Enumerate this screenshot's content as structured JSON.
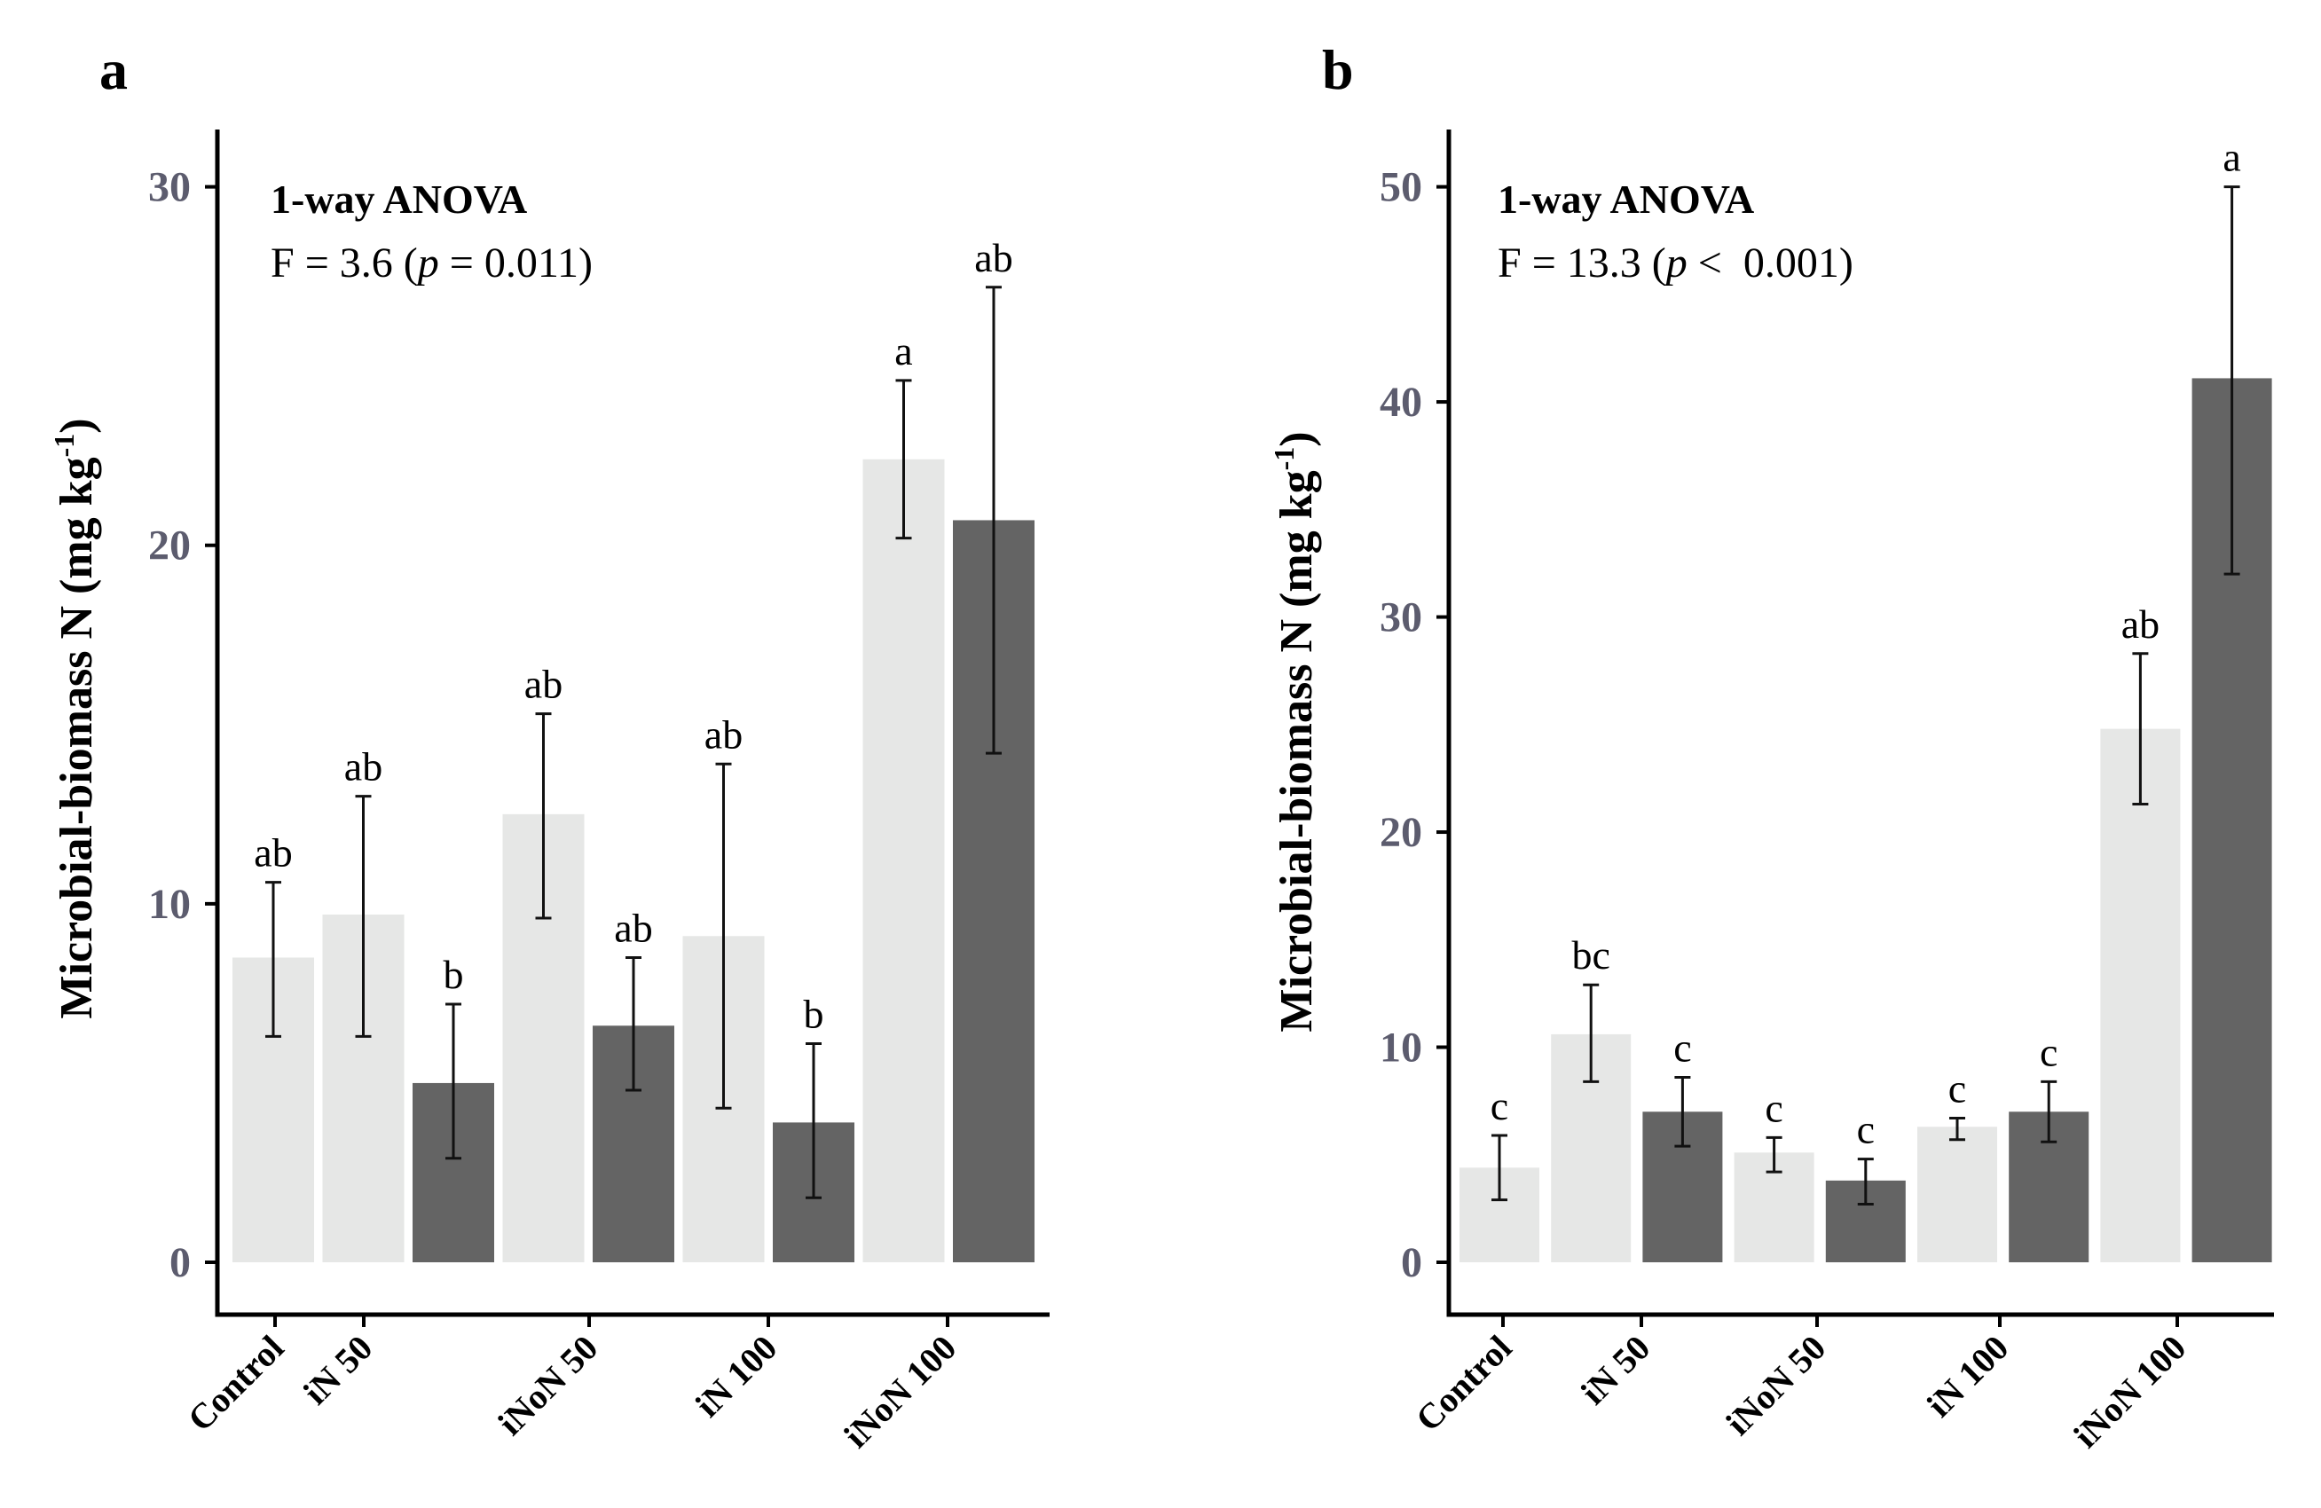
{
  "chart_data": [
    {
      "panel": "a",
      "type": "bar",
      "ylabel_main": "Microbial-biomass N (mg kg",
      "ylabel_sup": "-1",
      "ylabel_close": ")",
      "yticks": [
        0,
        10,
        20,
        30
      ],
      "ylim": [
        0,
        31.5
      ],
      "xticks": [
        "Control",
        "iN 50",
        "iNoN 50",
        "iN 100",
        "iNoN 100"
      ],
      "annotation": {
        "title": "1-way ANOVA",
        "stat_pre": "F = 3.6 (",
        "stat_p": "p",
        "stat_post": " = 0.011)"
      },
      "colors": {
        "light": "#e6e7e6",
        "dark": "#646464"
      },
      "bars": [
        {
          "value": 8.5,
          "err_low": 6.3,
          "err_high": 10.6,
          "letter": "ab",
          "shade": "light"
        },
        {
          "value": 9.7,
          "err_low": 6.3,
          "err_high": 13.0,
          "letter": "ab",
          "shade": "light"
        },
        {
          "value": 5.0,
          "err_low": 2.9,
          "err_high": 7.2,
          "letter": "b",
          "shade": "dark"
        },
        {
          "value": 12.5,
          "err_low": 9.6,
          "err_high": 15.3,
          "letter": "ab",
          "shade": "light"
        },
        {
          "value": 6.6,
          "err_low": 4.8,
          "err_high": 8.5,
          "letter": "ab",
          "shade": "dark"
        },
        {
          "value": 9.1,
          "err_low": 4.3,
          "err_high": 13.9,
          "letter": "ab",
          "shade": "light"
        },
        {
          "value": 3.9,
          "err_low": 1.8,
          "err_high": 6.1,
          "letter": "b",
          "shade": "dark"
        },
        {
          "value": 22.4,
          "err_low": 20.2,
          "err_high": 24.6,
          "letter": "a",
          "shade": "light"
        },
        {
          "value": 20.7,
          "err_low": 14.2,
          "err_high": 27.2,
          "letter": "ab",
          "shade": "dark"
        }
      ]
    },
    {
      "panel": "b",
      "type": "bar",
      "ylabel_main": "Microbial-biomass N (mg kg",
      "ylabel_sup": "-1",
      "ylabel_close": ")",
      "yticks": [
        0,
        10,
        20,
        30,
        40,
        50
      ],
      "ylim": [
        0,
        52.5
      ],
      "xticks": [
        "Control",
        "iN 50",
        "iNoN 50",
        "iN 100",
        "iNoN 100"
      ],
      "annotation": {
        "title": "1-way ANOVA",
        "stat_pre": "F = 13.3 (",
        "stat_p": "p",
        "stat_post": " <  0.001)"
      },
      "colors": {
        "light": "#e6e7e6",
        "dark": "#646464"
      },
      "bars": [
        {
          "value": 4.4,
          "err_low": 2.9,
          "err_high": 5.9,
          "letter": "c",
          "shade": "light"
        },
        {
          "value": 10.6,
          "err_low": 8.4,
          "err_high": 12.9,
          "letter": "bc",
          "shade": "light"
        },
        {
          "value": 7.0,
          "err_low": 5.4,
          "err_high": 8.6,
          "letter": "c",
          "shade": "dark"
        },
        {
          "value": 5.1,
          "err_low": 4.2,
          "err_high": 5.8,
          "letter": "c",
          "shade": "light"
        },
        {
          "value": 3.8,
          "err_low": 2.7,
          "err_high": 4.8,
          "letter": "c",
          "shade": "dark"
        },
        {
          "value": 6.3,
          "err_low": 5.7,
          "err_high": 6.7,
          "letter": "c",
          "shade": "light"
        },
        {
          "value": 7.0,
          "err_low": 5.6,
          "err_high": 8.4,
          "letter": "c",
          "shade": "dark"
        },
        {
          "value": 24.8,
          "err_low": 21.3,
          "err_high": 28.3,
          "letter": "ab",
          "shade": "light"
        },
        {
          "value": 41.1,
          "err_low": 32.0,
          "err_high": 50.0,
          "letter": "a",
          "shade": "dark"
        }
      ]
    }
  ]
}
